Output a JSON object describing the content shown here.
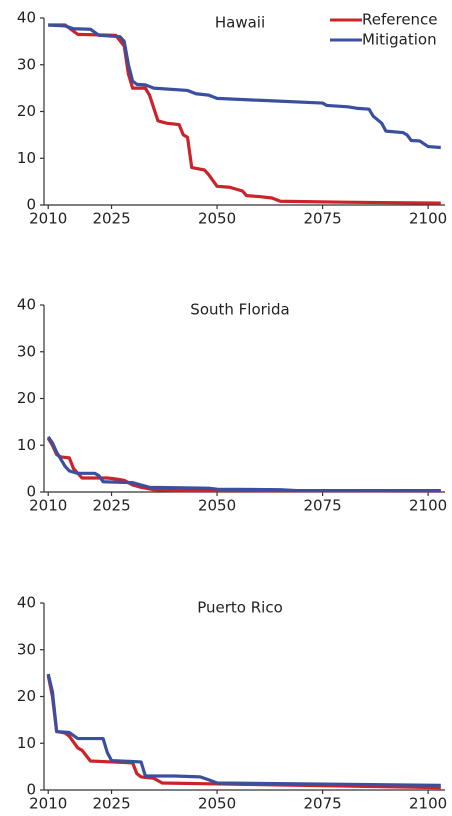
{
  "chart_data": [
    {
      "type": "line",
      "title": "Hawaii",
      "legend": "upper right",
      "xlim": [
        2009,
        2104
      ],
      "xticks": [
        2010,
        2025,
        2050,
        2075,
        2100
      ],
      "ylim": [
        0,
        40
      ],
      "yticks": [
        0,
        10,
        20,
        30,
        40
      ],
      "series": [
        {
          "name": "Reference",
          "color": "#cc2229",
          "x": [
            2010,
            2014,
            2017,
            2026,
            2028,
            2029,
            2030,
            2033,
            2034,
            2036,
            2038,
            2041,
            2042,
            2043,
            2044,
            2047,
            2048,
            2050,
            2053,
            2056,
            2057,
            2060,
            2063,
            2065,
            2080,
            2103
          ],
          "values": [
            38.5,
            38.5,
            36.5,
            36.3,
            34,
            28,
            25,
            25,
            23.5,
            18,
            17.5,
            17.2,
            15,
            14.5,
            8,
            7.5,
            6.5,
            4,
            3.8,
            3,
            2,
            1.8,
            1.5,
            0.8,
            0.6,
            0.4
          ]
        },
        {
          "name": "Mitigation",
          "color": "#3a4fa0",
          "x": [
            2010,
            2014,
            2016,
            2020,
            2022,
            2027,
            2028,
            2029,
            2030,
            2031,
            2033,
            2035,
            2043,
            2045,
            2048,
            2050,
            2060,
            2075,
            2076,
            2081,
            2083,
            2086,
            2087,
            2089,
            2090,
            2094,
            2095,
            2096,
            2098,
            2100,
            2103
          ],
          "values": [
            38.5,
            38.3,
            37.7,
            37.6,
            36.3,
            36,
            35,
            30,
            26.5,
            25.8,
            25.7,
            25,
            24.5,
            23.8,
            23.5,
            22.8,
            22.4,
            21.8,
            21.3,
            21,
            20.7,
            20.5,
            19,
            17.5,
            15.8,
            15.5,
            15,
            13.8,
            13.7,
            12.5,
            12.3
          ]
        }
      ]
    },
    {
      "type": "line",
      "title": "South Florida",
      "xlim": [
        2009,
        2104
      ],
      "xticks": [
        2010,
        2025,
        2050,
        2075,
        2100
      ],
      "ylim": [
        0,
        40
      ],
      "yticks": [
        0,
        10,
        20,
        30,
        40
      ],
      "series": [
        {
          "color": "#cc2229",
          "x": [
            2010,
            2011,
            2012,
            2013,
            2015,
            2016,
            2018,
            2024,
            2026,
            2028,
            2030,
            2032,
            2035,
            2040,
            2103
          ],
          "values": [
            11.5,
            10,
            8,
            7.5,
            7.3,
            5,
            3,
            3,
            2.8,
            2.5,
            1.5,
            1,
            0.5,
            0.3,
            0.2
          ]
        },
        {
          "color": "#3a4fa0",
          "x": [
            2010,
            2011,
            2012,
            2013,
            2014,
            2015,
            2017,
            2021,
            2022,
            2023,
            2030,
            2032,
            2034,
            2048,
            2050,
            2065,
            2069,
            2103
          ],
          "values": [
            11.8,
            10.5,
            8.5,
            7,
            5.5,
            4.5,
            4,
            4,
            3.5,
            2.2,
            2,
            1.5,
            1,
            0.8,
            0.6,
            0.5,
            0.3,
            0.3
          ]
        }
      ]
    },
    {
      "type": "line",
      "title": "Puerto Rico",
      "xlim": [
        2009,
        2104
      ],
      "xticks": [
        2010,
        2025,
        2050,
        2075,
        2100
      ],
      "ylim": [
        0,
        40
      ],
      "yticks": [
        0,
        10,
        20,
        30,
        40
      ],
      "series": [
        {
          "color": "#cc2229",
          "x": [
            2010,
            2011,
            2012,
            2014,
            2015,
            2017,
            2018,
            2020,
            2025,
            2030,
            2031,
            2032,
            2035,
            2037,
            2050,
            2103
          ],
          "values": [
            24.5,
            20,
            12.5,
            12.2,
            11.5,
            9,
            8.5,
            6.2,
            6,
            5.8,
            3.5,
            2.8,
            2.5,
            1.5,
            1.3,
            0.5
          ]
        },
        {
          "color": "#3a4fa0",
          "x": [
            2010,
            2011,
            2012,
            2015,
            2017,
            2023,
            2024,
            2025,
            2032,
            2033,
            2040,
            2046,
            2048,
            2050,
            2103
          ],
          "values": [
            24.8,
            21,
            12.5,
            12.3,
            11,
            11,
            8,
            6.3,
            6,
            3,
            3,
            2.8,
            2.2,
            1.5,
            1
          ]
        }
      ]
    }
  ]
}
